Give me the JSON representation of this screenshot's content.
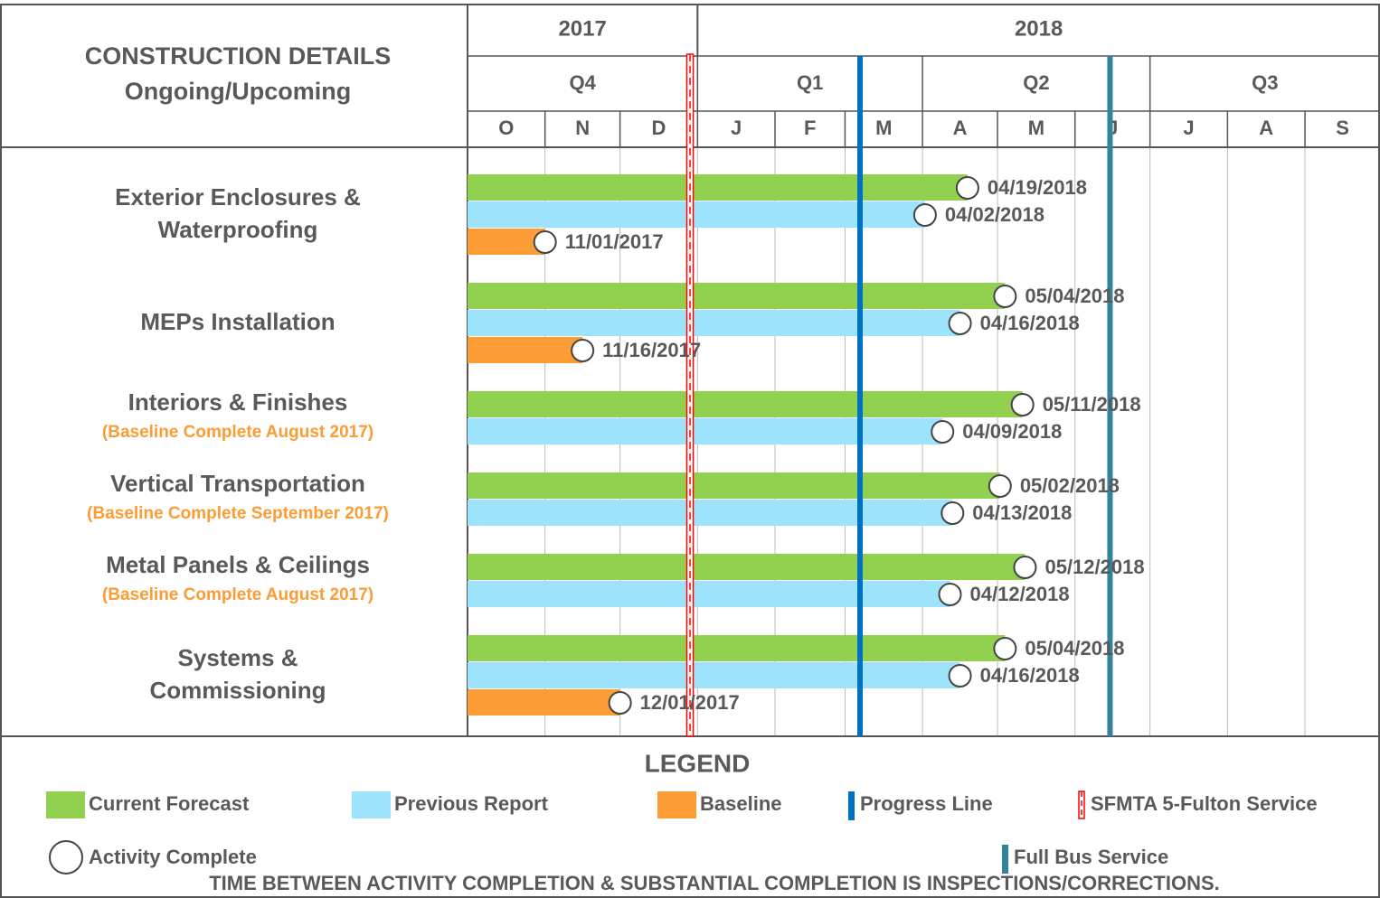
{
  "chart_data": {
    "type": "gantt",
    "title": "CONSTRUCTION DETAILS",
    "subtitle": "Ongoing/Upcoming",
    "xlim": [
      "10/01/2017",
      "10/01/2018"
    ],
    "years": [
      "2017",
      "2018"
    ],
    "quarters": [
      "Q4",
      "Q1",
      "Q2",
      "Q3"
    ],
    "months": [
      "O",
      "N",
      "D",
      "J",
      "F",
      "M",
      "A",
      "M",
      "J",
      "J",
      "A",
      "S"
    ],
    "series": [
      {
        "name": "Current Forecast",
        "color": "#92d050"
      },
      {
        "name": "Previous Report",
        "color": "#9ce3fb"
      },
      {
        "name": "Baseline",
        "color": "#fb9c34"
      }
    ],
    "tasks": [
      {
        "name": [
          "Exterior Enclosures &",
          "Waterproofing"
        ],
        "ends": [
          "04/19/2018",
          "04/02/2018",
          "11/01/2017"
        ]
      },
      {
        "name": [
          "MEPs Installation"
        ],
        "ends": [
          "05/04/2018",
          "04/16/2018",
          "11/16/2017"
        ]
      },
      {
        "name": [
          "Interiors & Finishes"
        ],
        "note": "(Baseline Complete August 2017)",
        "ends": [
          "05/11/2018",
          "04/09/2018"
        ]
      },
      {
        "name": [
          "Vertical Transportation"
        ],
        "note": "(Baseline Complete September 2017)",
        "ends": [
          "05/02/2018",
          "04/13/2018"
        ]
      },
      {
        "name": [
          "Metal Panels & Ceilings"
        ],
        "note": "(Baseline Complete August 2017)",
        "ends": [
          "05/12/2018",
          "04/12/2018"
        ]
      },
      {
        "name": [
          "Systems &",
          "Commissioning"
        ],
        "ends": [
          "05/04/2018",
          "04/16/2018",
          "12/01/2017"
        ]
      }
    ],
    "lines": [
      {
        "name": "Progress Line",
        "date": "03/07/2018",
        "color": "#0070c0",
        "style": "solid"
      },
      {
        "name": "SFMTA 5-Fulton Service",
        "date": "12/29/2017",
        "color": "#ff0000",
        "style": "dashed"
      },
      {
        "name": "Full Bus Service",
        "date": "06/15/2018",
        "color": "#31849b",
        "style": "solid"
      }
    ],
    "legend_title": "LEGEND",
    "marker_name": "Activity Complete",
    "footnote": "TIME BETWEEN ACTIVITY COMPLETION & SUBSTANTIAL COMPLETION IS INSPECTIONS/CORRECTIONS."
  }
}
